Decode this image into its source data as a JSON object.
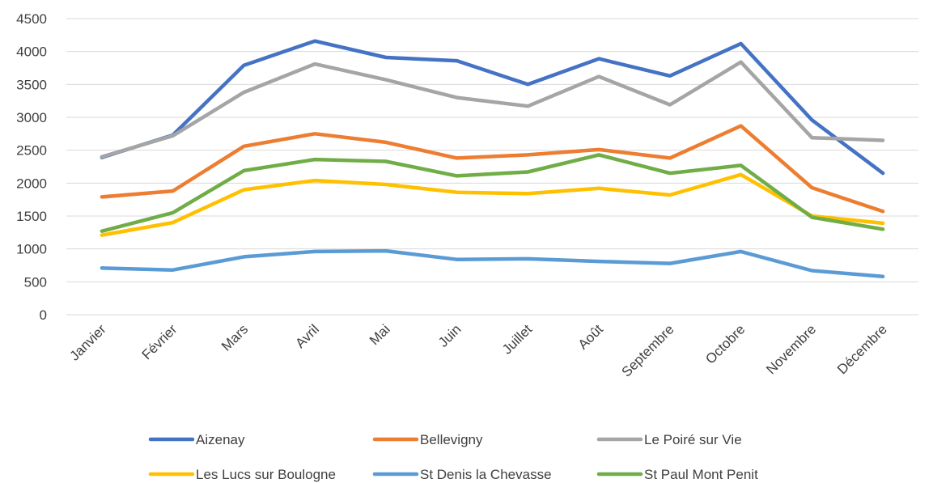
{
  "chart_data": {
    "type": "line",
    "title": "",
    "xlabel": "",
    "ylabel": "",
    "ylim": [
      0,
      4500
    ],
    "yticks": [
      0,
      500,
      1000,
      1500,
      2000,
      2500,
      3000,
      3500,
      4000,
      4500
    ],
    "grid": true,
    "legend_position": "bottom",
    "categories": [
      "Janvier",
      "Février",
      "Mars",
      "Avril",
      "Mai",
      "Juin",
      "Juillet",
      "Août",
      "Septembre",
      "Octobre",
      "Novembre",
      "Décembre"
    ],
    "series": [
      {
        "name": "Aizenay",
        "color": "#4472c4",
        "values": [
          2390,
          2730,
          3790,
          4160,
          3910,
          3860,
          3500,
          3890,
          3630,
          4120,
          2960,
          2150
        ]
      },
      {
        "name": "Bellevigny",
        "color": "#ed7d31",
        "values": [
          1790,
          1880,
          2560,
          2750,
          2620,
          2380,
          2430,
          2510,
          2380,
          2870,
          1930,
          1570
        ]
      },
      {
        "name": "Le Poiré sur Vie",
        "color": "#a5a5a5",
        "values": [
          2400,
          2720,
          3380,
          3810,
          3570,
          3300,
          3170,
          3620,
          3190,
          3840,
          2690,
          2650
        ]
      },
      {
        "name": "Les Lucs sur Boulogne",
        "color": "#ffc000",
        "values": [
          1210,
          1400,
          1900,
          2040,
          1980,
          1860,
          1840,
          1920,
          1820,
          2130,
          1500,
          1390
        ]
      },
      {
        "name": "St Denis la Chevasse",
        "color": "#5b9bd5",
        "values": [
          710,
          680,
          880,
          960,
          970,
          840,
          850,
          810,
          780,
          960,
          670,
          580
        ]
      },
      {
        "name": "St Paul Mont Penit",
        "color": "#70ad47",
        "values": [
          1270,
          1550,
          2190,
          2360,
          2330,
          2110,
          2170,
          2430,
          2150,
          2270,
          1480,
          1300
        ]
      }
    ]
  }
}
